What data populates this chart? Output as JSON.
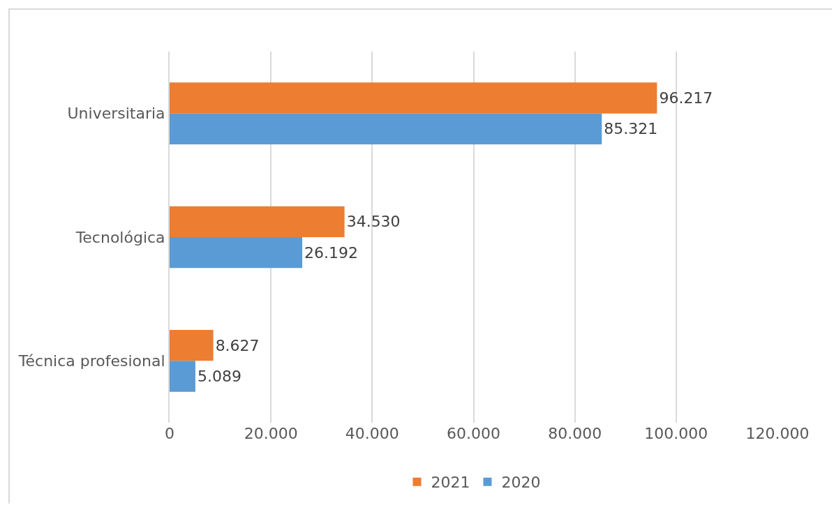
{
  "chart_data": {
    "type": "bar",
    "orientation": "horizontal",
    "categories": [
      "Universitaria",
      "Tecnológica",
      "Técnica profesional"
    ],
    "series": [
      {
        "name": "2021",
        "color": "#ed7d31",
        "values": [
          96217,
          34530,
          8627
        ],
        "value_labels": [
          "96.217",
          "34.530",
          "8.627"
        ]
      },
      {
        "name": "2020",
        "color": "#5b9bd5",
        "values": [
          85321,
          26192,
          5089
        ],
        "value_labels": [
          "85.321",
          "26.192",
          "5.089"
        ]
      }
    ],
    "xlim": [
      0,
      120000
    ],
    "xticks": [
      0,
      {
        "value": 20000,
        "label": "20.000"
      },
      {
        "value": 40000,
        "label": "40.000"
      },
      {
        "value": 60000,
        "label": "60.000"
      },
      {
        "value": 80000,
        "label": "80.000"
      },
      {
        "value": 100000,
        "label": "100.000"
      },
      {
        "value": 120000,
        "label": "120.000"
      }
    ],
    "grid": "x",
    "legend": "bottom"
  }
}
